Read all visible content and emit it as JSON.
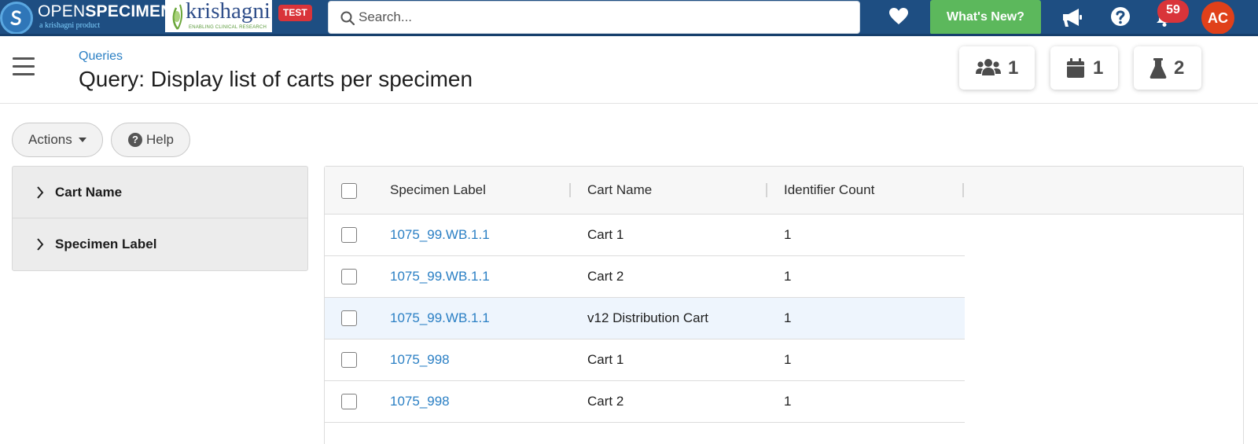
{
  "navbar": {
    "brand_prefix": "OPEN",
    "brand_main": "SPECIMEN",
    "brand_sub": "a krishagni product",
    "partner_name": "krishagni",
    "partner_tagline": "ENABLING CLINICAL RESEARCH",
    "env_badge": "TEST",
    "search_placeholder": "Search...",
    "whats_new_label": "What's New?",
    "notification_count": "59",
    "avatar_initials": "AC",
    "colors": {
      "bar": "#1e4e82",
      "whats_new": "#5cb85c",
      "badge": "#d9343a",
      "avatar": "#e0401a"
    }
  },
  "header": {
    "breadcrumb": "Queries",
    "title": "Query: Display list of carts per specimen",
    "stats": [
      {
        "icon": "users-icon",
        "value": "1"
      },
      {
        "icon": "calendar-icon",
        "value": "1"
      },
      {
        "icon": "flask-icon",
        "value": "2"
      }
    ]
  },
  "toolbar": {
    "actions_label": "Actions",
    "help_label": "Help"
  },
  "filters": [
    {
      "label": "Cart Name"
    },
    {
      "label": "Specimen Label"
    }
  ],
  "grid": {
    "columns": [
      "Specimen Label",
      "Cart Name",
      "Identifier Count"
    ],
    "rows": [
      {
        "specimen_label": "1075_99.WB.1.1",
        "cart_name": "Cart 1",
        "identifier_count": "1",
        "highlighted": false
      },
      {
        "specimen_label": "1075_99.WB.1.1",
        "cart_name": "Cart 2",
        "identifier_count": "1",
        "highlighted": false
      },
      {
        "specimen_label": "1075_99.WB.1.1",
        "cart_name": "v12 Distribution Cart",
        "identifier_count": "1",
        "highlighted": true
      },
      {
        "specimen_label": "1075_998",
        "cart_name": "Cart 1",
        "identifier_count": "1",
        "highlighted": false
      },
      {
        "specimen_label": "1075_998",
        "cart_name": "Cart 2",
        "identifier_count": "1",
        "highlighted": false
      }
    ],
    "link_color": "#2a7fc4"
  }
}
